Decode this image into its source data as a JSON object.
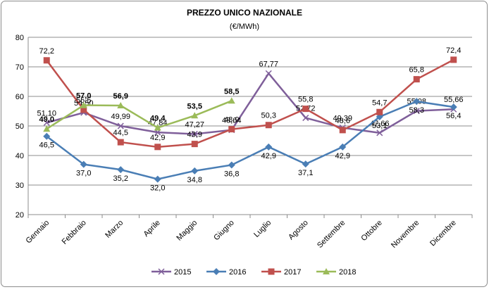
{
  "chart_data": {
    "type": "line",
    "title": "PREZZO UNICO NAZIONALE",
    "subtitle": "(€/MWh)",
    "categories": [
      "Gennaio",
      "Febbraio",
      "Marzo",
      "Aprile",
      "Maggio",
      "Giugno",
      "Luglio",
      "Agosto",
      "Settembre",
      "Ottobre",
      "Novembre",
      "Dicembre"
    ],
    "ylim": [
      20,
      80
    ],
    "yticks": [
      20,
      30,
      40,
      50,
      60,
      70,
      80
    ],
    "grid": true,
    "legend": "bottom",
    "series": [
      {
        "name": "2015",
        "color": "#7f5f9a",
        "marker": "x",
        "values": [
          51.1,
          54.5,
          49.99,
          47.84,
          47.27,
          48.64,
          67.77,
          52.72,
          49.39,
          47.66,
          55.08,
          55.66
        ],
        "value_labels": [
          "51,10",
          "54,50",
          "49,99",
          "47,84",
          "47,27",
          "48,64",
          "67,77",
          "52,72",
          "49,39",
          "47,66",
          "55,08",
          "55,66"
        ]
      },
      {
        "name": "2016",
        "color": "#4a7eb5",
        "marker": "diamond",
        "values": [
          46.5,
          37.0,
          35.2,
          32.0,
          34.8,
          36.8,
          42.9,
          37.1,
          42.9,
          53.1,
          58.3,
          56.4
        ],
        "value_labels": [
          "46,5",
          "37,0",
          "35,2",
          "32,0",
          "34,8",
          "36,8",
          "42,9",
          "37,1",
          "42,9",
          "53,1",
          "58,3",
          "56,4"
        ]
      },
      {
        "name": "2017",
        "color": "#c0504d",
        "marker": "square",
        "values": [
          72.2,
          55.5,
          44.5,
          42.9,
          43.9,
          48.9,
          50.3,
          55.8,
          48.6,
          54.7,
          65.8,
          72.4
        ],
        "value_labels": [
          "72,2",
          "55,5",
          "44,5",
          "42,9",
          "43,9",
          "48,9",
          "50,3",
          "55,8",
          "48,6",
          "54,7",
          "65,8",
          "72,4"
        ]
      },
      {
        "name": "2018",
        "color": "#9bbb59",
        "marker": "triangle",
        "values": [
          49.0,
          57.0,
          56.9,
          49.4,
          53.5,
          58.5,
          null,
          null,
          null,
          null,
          null,
          null
        ],
        "value_labels": [
          "49,0",
          "57,0",
          "56,9",
          "49,4",
          "53,5",
          "58,5",
          null,
          null,
          null,
          null,
          null,
          null
        ]
      }
    ]
  }
}
